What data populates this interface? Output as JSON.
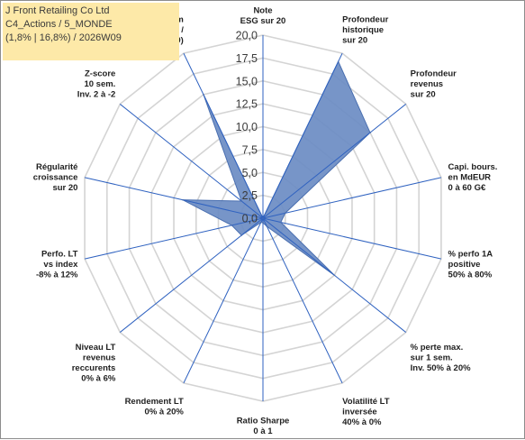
{
  "title_box": {
    "line1": "J Front Retailing Co Ltd",
    "line2": "C4_Actions / 5_MONDE",
    "line3": "(1,8% | 16,8%) / 2026W09"
  },
  "chart_data": {
    "type": "radar",
    "rmin": 0,
    "rmax": 20,
    "ticks": [
      "0,0",
      "2,5",
      "5,0",
      "7,5",
      "10,0",
      "12,5",
      "15,0",
      "17,5",
      "20,0"
    ],
    "axes": [
      [
        "Note",
        "ESG sur 20"
      ],
      [
        "Profondeur",
        "historique",
        "sur 20"
      ],
      [
        "Profondeur",
        "revenus",
        "sur 20"
      ],
      [
        "Capi. bours.",
        "en MdEUR",
        "0 à 60 G€"
      ],
      [
        "% perfo 1A",
        "positive",
        "50% à 80%"
      ],
      [
        "% perte max.",
        "sur 1 sem.",
        "Inv. 50% à 20%"
      ],
      [
        "Volatilité LT",
        "inversée",
        "40% à 0%"
      ],
      [
        "Ratio Sharpe",
        "0 à 1"
      ],
      [
        "Rendement LT",
        "0% à 20%"
      ],
      [
        "Niveau LT",
        "revenus",
        "reccurents",
        "0% à 6%"
      ],
      [
        "Perfo. LT",
        "vs index",
        "-8% à 12%"
      ],
      [
        "Régularité",
        "croissance",
        "sur 20"
      ],
      [
        "Z-score",
        "10 sem.",
        "Inv. 2 à -2"
      ],
      [
        "Momentum",
        "Achat (20) /",
        "Vente (0)"
      ]
    ],
    "values": [
      0,
      19,
      15,
      2.5,
      2,
      10,
      1,
      0.5,
      0.5,
      3,
      3.5,
      9,
      3,
      15
    ],
    "grid": true,
    "series_color": "#6b8cc3"
  }
}
